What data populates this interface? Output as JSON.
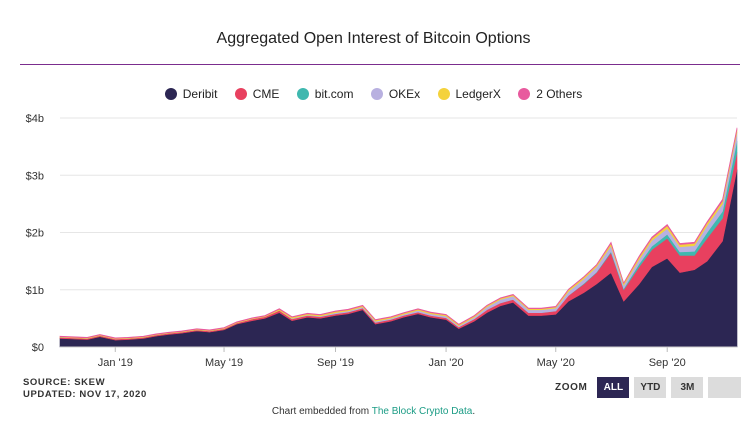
{
  "chart_data": {
    "type": "area",
    "stacked": true,
    "title": "Aggregated Open Interest of Bitcoin Options",
    "xlabel": "",
    "ylabel": "",
    "y_ticks": [
      "$0",
      "$1b",
      "$2b",
      "$3b",
      "$4b"
    ],
    "x_ticks": [
      "Jan '19",
      "May '19",
      "Sep '19",
      "Jan '20",
      "May '20",
      "Sep '20"
    ],
    "ylim": [
      0,
      4
    ],
    "grid": "horizontal",
    "legend_position": "top-center",
    "x": [
      "2018-11-01",
      "2018-11-15",
      "2018-12-01",
      "2018-12-15",
      "2019-01-01",
      "2019-01-15",
      "2019-02-01",
      "2019-02-15",
      "2019-03-01",
      "2019-03-15",
      "2019-04-01",
      "2019-04-15",
      "2019-05-01",
      "2019-05-15",
      "2019-06-01",
      "2019-06-15",
      "2019-07-01",
      "2019-07-15",
      "2019-08-01",
      "2019-08-15",
      "2019-09-01",
      "2019-09-15",
      "2019-10-01",
      "2019-10-15",
      "2019-11-01",
      "2019-11-15",
      "2019-12-01",
      "2019-12-15",
      "2020-01-01",
      "2020-01-15",
      "2020-02-01",
      "2020-02-15",
      "2020-03-01",
      "2020-03-15",
      "2020-04-01",
      "2020-04-15",
      "2020-05-01",
      "2020-05-15",
      "2020-06-01",
      "2020-06-15",
      "2020-07-01",
      "2020-07-15",
      "2020-08-01",
      "2020-08-15",
      "2020-09-01",
      "2020-09-15",
      "2020-10-01",
      "2020-10-15",
      "2020-11-01",
      "2020-11-17"
    ],
    "series": [
      {
        "name": "Deribit",
        "color": "#2c2653",
        "values": [
          0.15,
          0.14,
          0.13,
          0.18,
          0.12,
          0.13,
          0.15,
          0.19,
          0.22,
          0.24,
          0.28,
          0.26,
          0.3,
          0.4,
          0.46,
          0.5,
          0.6,
          0.46,
          0.52,
          0.5,
          0.55,
          0.58,
          0.65,
          0.4,
          0.45,
          0.52,
          0.58,
          0.52,
          0.48,
          0.32,
          0.45,
          0.6,
          0.72,
          0.78,
          0.55,
          0.55,
          0.57,
          0.8,
          0.95,
          1.1,
          1.3,
          0.8,
          1.1,
          1.4,
          1.55,
          1.3,
          1.35,
          1.5,
          1.85,
          3.1
        ]
      },
      {
        "name": "CME",
        "color": "#e8405f",
        "values": [
          0.02,
          0.02,
          0.02,
          0.02,
          0.02,
          0.02,
          0.02,
          0.02,
          0.02,
          0.02,
          0.02,
          0.02,
          0.02,
          0.02,
          0.03,
          0.03,
          0.04,
          0.03,
          0.03,
          0.03,
          0.03,
          0.03,
          0.03,
          0.03,
          0.03,
          0.03,
          0.03,
          0.03,
          0.03,
          0.03,
          0.04,
          0.05,
          0.05,
          0.05,
          0.05,
          0.05,
          0.06,
          0.1,
          0.15,
          0.2,
          0.35,
          0.2,
          0.3,
          0.3,
          0.35,
          0.3,
          0.25,
          0.4,
          0.4,
          0.3
        ]
      },
      {
        "name": "bit.com",
        "color": "#3fb8af",
        "values": [
          0,
          0,
          0,
          0,
          0,
          0,
          0,
          0,
          0,
          0,
          0,
          0,
          0,
          0,
          0,
          0,
          0,
          0,
          0,
          0,
          0,
          0,
          0,
          0,
          0,
          0,
          0,
          0,
          0,
          0,
          0,
          0,
          0,
          0,
          0,
          0,
          0,
          0,
          0.01,
          0.01,
          0.02,
          0.02,
          0.05,
          0.06,
          0.07,
          0.06,
          0.07,
          0.1,
          0.12,
          0.2
        ]
      },
      {
        "name": "OKEx",
        "color": "#b8b0e0",
        "values": [
          0,
          0,
          0,
          0,
          0,
          0,
          0,
          0,
          0,
          0,
          0,
          0,
          0,
          0,
          0,
          0,
          0,
          0.01,
          0.01,
          0.01,
          0.02,
          0.02,
          0.02,
          0.02,
          0.02,
          0.02,
          0.03,
          0.03,
          0.03,
          0.02,
          0.03,
          0.05,
          0.06,
          0.06,
          0.05,
          0.05,
          0.05,
          0.07,
          0.08,
          0.09,
          0.1,
          0.06,
          0.08,
          0.1,
          0.1,
          0.09,
          0.1,
          0.12,
          0.13,
          0.15
        ]
      },
      {
        "name": "LedgerX",
        "color": "#f4d23c",
        "values": [
          0.01,
          0.01,
          0.01,
          0.01,
          0.01,
          0.01,
          0.01,
          0.01,
          0.01,
          0.01,
          0.01,
          0.01,
          0.01,
          0.01,
          0.01,
          0.01,
          0.02,
          0.02,
          0.02,
          0.02,
          0.02,
          0.02,
          0.02,
          0.02,
          0.02,
          0.02,
          0.02,
          0.02,
          0.02,
          0.02,
          0.02,
          0.02,
          0.02,
          0.02,
          0.02,
          0.02,
          0.02,
          0.03,
          0.03,
          0.03,
          0.04,
          0.03,
          0.04,
          0.04,
          0.05,
          0.04,
          0.04,
          0.05,
          0.05,
          0.05
        ]
      },
      {
        "name": "2 Others",
        "color": "#e85a9e",
        "values": [
          0.01,
          0.01,
          0.01,
          0.01,
          0.01,
          0.01,
          0.01,
          0.01,
          0.01,
          0.01,
          0.01,
          0.01,
          0.01,
          0.01,
          0.01,
          0.01,
          0.01,
          0.01,
          0.01,
          0.01,
          0.01,
          0.01,
          0.01,
          0.01,
          0.01,
          0.01,
          0.01,
          0.01,
          0.01,
          0.01,
          0.01,
          0.01,
          0.01,
          0.01,
          0.01,
          0.01,
          0.01,
          0.01,
          0.01,
          0.01,
          0.02,
          0.01,
          0.02,
          0.02,
          0.02,
          0.02,
          0.02,
          0.02,
          0.03,
          0.03
        ]
      }
    ]
  },
  "footer": {
    "source": "SOURCE: SKEW",
    "updated": "UPDATED: NOV 17, 2020"
  },
  "zoom": {
    "label": "ZOOM",
    "buttons": [
      "ALL",
      "YTD",
      "3M",
      ""
    ],
    "active": "ALL"
  },
  "embed": {
    "prefix": "Chart embedded from ",
    "link": "The Block Crypto Data",
    "suffix": "."
  },
  "colors": {
    "accent_rule": "#7b2d8e",
    "active_button": "#2c2653",
    "link": "#1b9c85"
  }
}
